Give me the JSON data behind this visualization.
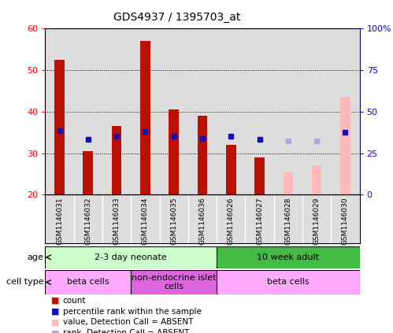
{
  "title": "GDS4937 / 1395703_at",
  "samples": [
    "GSM1146031",
    "GSM1146032",
    "GSM1146033",
    "GSM1146034",
    "GSM1146035",
    "GSM1146036",
    "GSM1146026",
    "GSM1146027",
    "GSM1146028",
    "GSM1146029",
    "GSM1146030"
  ],
  "counts": [
    52.5,
    30.5,
    36.5,
    57.0,
    40.5,
    39.0,
    32.0,
    29.0,
    null,
    null,
    null
  ],
  "counts_absent": [
    null,
    null,
    null,
    null,
    null,
    null,
    null,
    null,
    25.5,
    27.0,
    43.5
  ],
  "ranks": [
    38.5,
    33.5,
    35.0,
    38.0,
    35.0,
    34.0,
    35.0,
    33.5,
    null,
    null,
    37.5
  ],
  "ranks_absent": [
    null,
    null,
    null,
    null,
    null,
    null,
    null,
    null,
    32.5,
    32.5,
    null
  ],
  "ylim_left": [
    20,
    60
  ],
  "ylim_right": [
    0,
    100
  ],
  "yticks_left": [
    20,
    30,
    40,
    50,
    60
  ],
  "yticks_right": [
    0,
    25,
    50,
    75,
    100
  ],
  "ytick_labels_right": [
    "0",
    "25",
    "50",
    "75",
    "100%"
  ],
  "bar_color_present": "#bb1100",
  "bar_color_absent": "#ffbbbb",
  "rank_color_present": "#1111bb",
  "rank_color_absent": "#aaaadd",
  "bar_bottom": 20,
  "age_groups": [
    {
      "label": "2-3 day neonate",
      "start": 0,
      "end": 6,
      "color": "#ccffcc"
    },
    {
      "label": "10 week adult",
      "start": 6,
      "end": 11,
      "color": "#44bb44"
    }
  ],
  "cell_type_groups": [
    {
      "label": "beta cells",
      "start": 0,
      "end": 3,
      "color": "#ffaaff"
    },
    {
      "label": "non-endocrine islet\ncells",
      "start": 3,
      "end": 6,
      "color": "#dd66dd"
    },
    {
      "label": "beta cells",
      "start": 6,
      "end": 11,
      "color": "#ffaaff"
    }
  ],
  "legend_items": [
    {
      "label": "count",
      "color": "#bb1100",
      "is_rank": false
    },
    {
      "label": "percentile rank within the sample",
      "color": "#1111bb",
      "is_rank": true
    },
    {
      "label": "value, Detection Call = ABSENT",
      "color": "#ffbbbb",
      "is_rank": false
    },
    {
      "label": "rank, Detection Call = ABSENT",
      "color": "#aaaadd",
      "is_rank": true
    }
  ],
  "col_bg_color": "#dddddd",
  "chart_bg_color": "#ffffff",
  "fig_width": 4.99,
  "fig_height": 4.23
}
